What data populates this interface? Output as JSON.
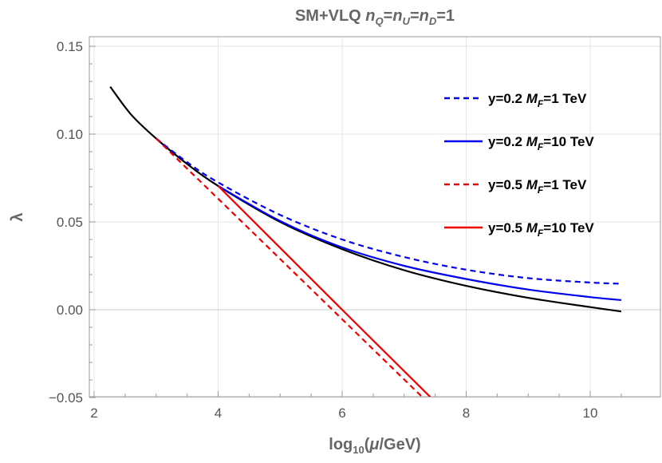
{
  "chart_data": {
    "type": "line",
    "title": "SM+VLQ n_Q=n_U=n_D=1",
    "title_parts": {
      "prefix": "SM+VLQ ",
      "rest": "=1"
    },
    "xlabel": "log10(μ/GeV)",
    "ylabel": "λ",
    "xlim": [
      1.9,
      11.1
    ],
    "ylim": [
      -0.05,
      0.15
    ],
    "xticks": [
      2,
      4,
      6,
      8,
      10
    ],
    "yticks": [
      -0.05,
      0.0,
      0.05,
      0.1,
      0.15
    ],
    "ytick_labels": [
      "−0.05",
      "0.00",
      "0.05",
      "0.10",
      "0.15"
    ],
    "grid": true,
    "legend_position": "top-right",
    "series": [
      {
        "name": "",
        "color": "#000000",
        "dash": "solid",
        "x": [
          2.26,
          2.6,
          3,
          3.5,
          4,
          5,
          6,
          7,
          8,
          9,
          10,
          10.5
        ],
        "y": [
          0.127,
          0.111,
          0.0975,
          0.083,
          0.0705,
          0.05,
          0.0345,
          0.0225,
          0.0136,
          0.0068,
          0.0015,
          -0.001
        ]
      },
      {
        "name": "y=0.2 M_F=1 TeV",
        "label_parts": [
          "y=0.2 ",
          "M",
          "F",
          "=1 TeV"
        ],
        "color": "#0000ee",
        "dash": "dashed",
        "x": [
          3,
          3.5,
          4,
          5,
          6,
          7,
          8,
          9,
          10,
          10.5
        ],
        "y": [
          0.0975,
          0.084,
          0.0725,
          0.054,
          0.04,
          0.03,
          0.0228,
          0.018,
          0.0155,
          0.0148
        ]
      },
      {
        "name": "y=0.2 M_F=10 TeV",
        "label_parts": [
          "y=0.2 ",
          "M",
          "F",
          "=10 TeV"
        ],
        "color": "#0000ee",
        "dash": "solid",
        "x": [
          4,
          5,
          6,
          7,
          8,
          9,
          10,
          10.5
        ],
        "y": [
          0.0705,
          0.0505,
          0.0355,
          0.025,
          0.0175,
          0.0115,
          0.0072,
          0.0055
        ]
      },
      {
        "name": "y=0.5 M_F=1 TeV",
        "label_parts": [
          "y=0.5 ",
          "M",
          "F",
          "=1 TeV"
        ],
        "color": "#ee0000",
        "dash": "dashed",
        "x": [
          3,
          7.3
        ],
        "y": [
          0.0975,
          -0.05
        ]
      },
      {
        "name": "y=0.5 M_F=10 TeV",
        "label_parts": [
          "y=0.5 ",
          "M",
          "F",
          "=10 TeV"
        ],
        "color": "#ee0000",
        "dash": "solid",
        "x": [
          4,
          6,
          7.43
        ],
        "y": [
          0.0705,
          0.0,
          -0.05
        ]
      }
    ]
  }
}
